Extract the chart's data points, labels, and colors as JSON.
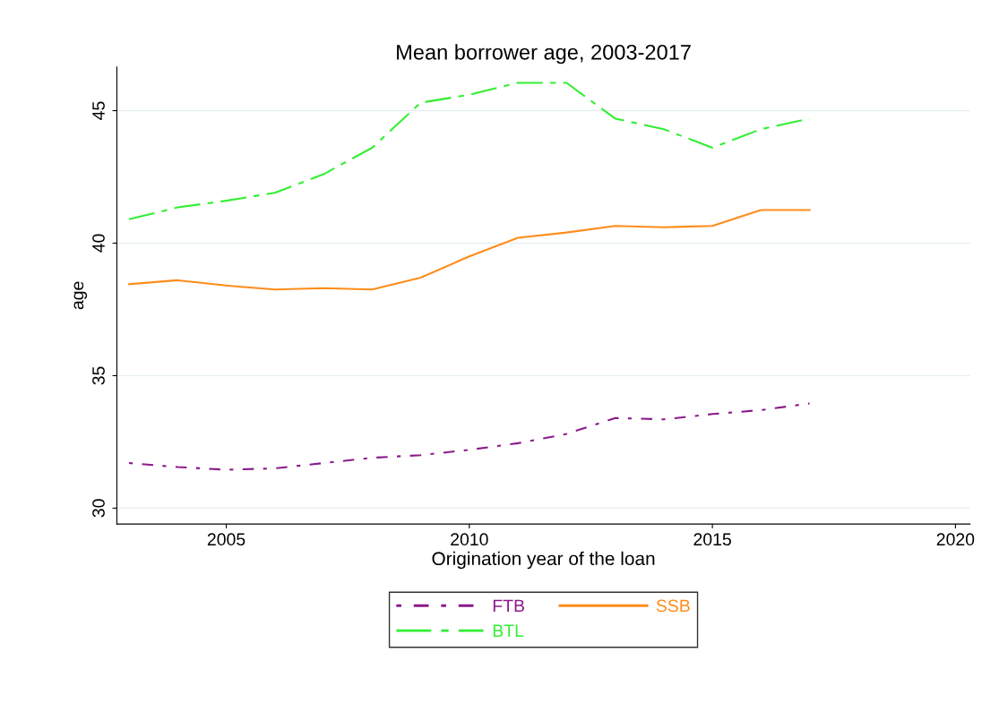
{
  "chart_data": {
    "type": "line",
    "title": "Mean borrower age, 2003-2017",
    "xlabel": "Origination year of the loan",
    "ylabel": "age",
    "x": [
      2003,
      2004,
      2005,
      2006,
      2007,
      2008,
      2009,
      2010,
      2011,
      2012,
      2013,
      2014,
      2015,
      2016,
      2017
    ],
    "series": [
      {
        "name": "FTB",
        "color": "#8b1a8b",
        "line_style": "dotted",
        "values": [
          31.7,
          31.55,
          31.45,
          31.5,
          31.7,
          31.9,
          32.0,
          32.2,
          32.45,
          32.8,
          33.4,
          33.35,
          33.55,
          33.7,
          33.95
        ]
      },
      {
        "name": "SSB",
        "color": "#ff8c1a",
        "line_style": "solid",
        "values": [
          38.45,
          38.6,
          38.4,
          38.25,
          38.3,
          38.25,
          38.7,
          39.5,
          40.2,
          40.4,
          40.65,
          40.6,
          40.65,
          41.25,
          41.25
        ]
      },
      {
        "name": "BTL",
        "color": "#33ee33",
        "line_style": "dashed",
        "values": [
          40.9,
          41.35,
          41.6,
          41.9,
          42.6,
          43.6,
          45.3,
          45.6,
          46.05,
          46.05,
          44.7,
          44.3,
          43.6,
          44.3,
          44.7
        ]
      }
    ],
    "xlim": [
      2002.75,
      2020.3
    ],
    "xticks": [
      2005,
      2010,
      2015,
      2020
    ],
    "ylim": [
      29.4,
      46.65
    ],
    "yticks": [
      30,
      35,
      40,
      45
    ],
    "grid": "y",
    "legend": "bottom"
  }
}
